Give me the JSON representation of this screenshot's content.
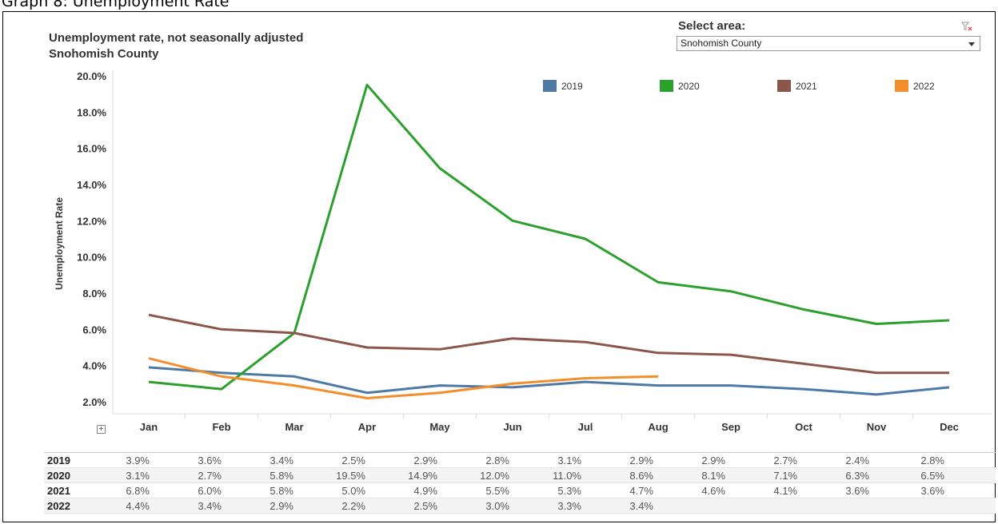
{
  "page_caption": "Graph 8: Unemployment Rate",
  "title_line1": "Unemployment rate, not seasonally adjusted",
  "title_line2": "Snohomish County",
  "area_filter": {
    "label": "Select area:",
    "selected": "Snohomish County",
    "clear_icon": "filter-clear-icon"
  },
  "expand_symbol": "+",
  "chart_data": {
    "type": "line",
    "title": "Unemployment rate, not seasonally adjusted",
    "subtitle": "Snohomish County",
    "xlabel": "",
    "ylabel": "Unemployment Rate",
    "categories": [
      "Jan",
      "Feb",
      "Mar",
      "Apr",
      "May",
      "Jun",
      "Jul",
      "Aug",
      "Sep",
      "Oct",
      "Nov",
      "Dec"
    ],
    "ylim": [
      2.0,
      20.0
    ],
    "yticks": [
      "2.0%",
      "4.0%",
      "6.0%",
      "8.0%",
      "10.0%",
      "12.0%",
      "14.0%",
      "16.0%",
      "18.0%",
      "20.0%"
    ],
    "ytick_values": [
      2,
      4,
      6,
      8,
      10,
      12,
      14,
      16,
      18,
      20
    ],
    "grid": false,
    "legend_position": "top",
    "series": [
      {
        "name": "2019",
        "color": "#4e79a7",
        "values": [
          3.9,
          3.6,
          3.4,
          2.5,
          2.9,
          2.8,
          3.1,
          2.9,
          2.9,
          2.7,
          2.4,
          2.8
        ]
      },
      {
        "name": "2020",
        "color": "#2ca02c",
        "values": [
          3.1,
          2.7,
          5.8,
          19.5,
          14.9,
          12.0,
          11.0,
          8.6,
          8.1,
          7.1,
          6.3,
          6.5
        ]
      },
      {
        "name": "2021",
        "color": "#8c564b",
        "values": [
          6.8,
          6.0,
          5.8,
          5.0,
          4.9,
          5.5,
          5.3,
          4.7,
          4.6,
          4.1,
          3.6,
          3.6
        ]
      },
      {
        "name": "2022",
        "color": "#f28e2b",
        "values": [
          4.4,
          3.4,
          2.9,
          2.2,
          2.5,
          3.0,
          3.3,
          3.4,
          null,
          null,
          null,
          null
        ]
      }
    ]
  },
  "table": {
    "rows": [
      {
        "year": "2019",
        "cells": [
          "3.9%",
          "3.6%",
          "3.4%",
          "2.5%",
          "2.9%",
          "2.8%",
          "3.1%",
          "2.9%",
          "2.9%",
          "2.7%",
          "2.4%",
          "2.8%"
        ]
      },
      {
        "year": "2020",
        "cells": [
          "3.1%",
          "2.7%",
          "5.8%",
          "19.5%",
          "14.9%",
          "12.0%",
          "11.0%",
          "8.6%",
          "8.1%",
          "7.1%",
          "6.3%",
          "6.5%"
        ]
      },
      {
        "year": "2021",
        "cells": [
          "6.8%",
          "6.0%",
          "5.8%",
          "5.0%",
          "4.9%",
          "5.5%",
          "5.3%",
          "4.7%",
          "4.6%",
          "4.1%",
          "3.6%",
          "3.6%"
        ]
      },
      {
        "year": "2022",
        "cells": [
          "4.4%",
          "3.4%",
          "2.9%",
          "2.2%",
          "2.5%",
          "3.0%",
          "3.3%",
          "3.4%",
          "",
          "",
          "",
          ""
        ]
      }
    ]
  }
}
